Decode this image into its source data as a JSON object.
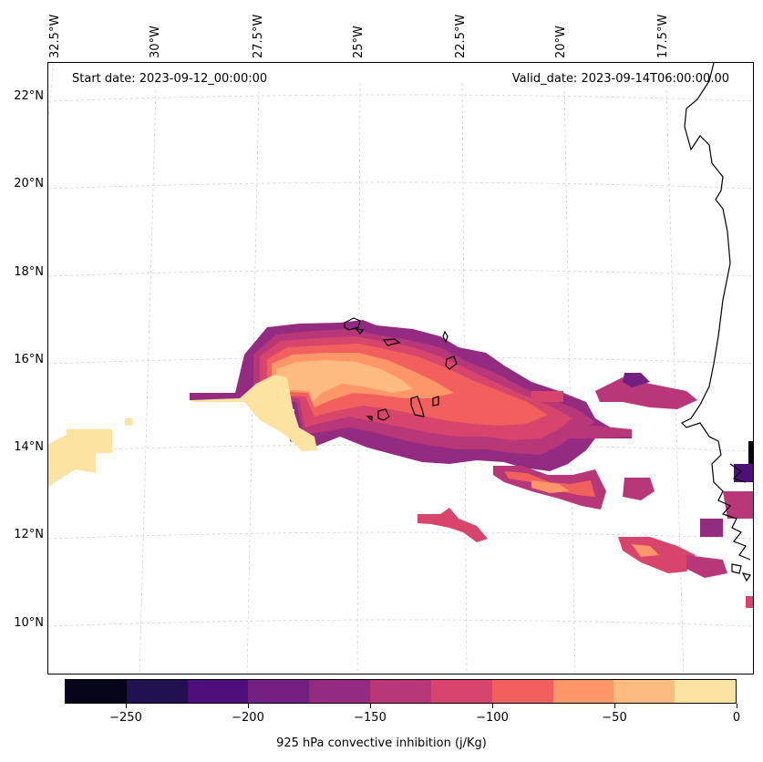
{
  "map": {
    "longitude_labels": [
      "32.5°W",
      "30°W",
      "27.5°W",
      "25°W",
      "22.5°W",
      "20°W",
      "17.5°W"
    ],
    "latitude_labels": [
      "22°N",
      "20°N",
      "18°N",
      "16°N",
      "14°N",
      "12°N",
      "10°N"
    ],
    "start_date": "Start date: 2023-09-12_00:00:00",
    "valid_date": "Valid_date: 2023-09-14T06:00:00.00",
    "field": "925 hPa convective inhibition",
    "colors": {
      "coastline": "#000000",
      "gridline": "#cccccc"
    }
  },
  "colorbar": {
    "label": "925 hPa convective inhibition (j/Kg)",
    "tick_labels": [
      "−250",
      "−200",
      "−150",
      "−100",
      "−50",
      "0"
    ],
    "ticks": [
      -250,
      -200,
      -150,
      -100,
      -50,
      0
    ],
    "range": [
      -275,
      0
    ],
    "levels": [
      -275,
      -250,
      -225,
      -200,
      -175,
      -150,
      -125,
      -100,
      -75,
      -50,
      -25,
      0
    ],
    "colors": [
      "#06051a",
      "#221150",
      "#4f0f7b",
      "#721f81",
      "#932b80",
      "#b73779",
      "#d8456c",
      "#f1605d",
      "#fd9668",
      "#febb81",
      "#fde3a2"
    ]
  }
}
